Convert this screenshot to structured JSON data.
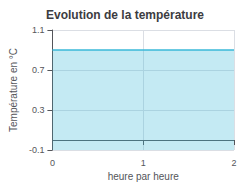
{
  "chart_data": {
    "type": "area",
    "title": "Evolution de la température",
    "xlabel": "heure par heure",
    "ylabel": "Température en °C",
    "x": [
      0,
      2
    ],
    "values": [
      0.9,
      0.9
    ],
    "color": "#3ab8d8",
    "xlim": [
      0,
      2
    ],
    "ylim": [
      -0.1,
      1.1
    ],
    "xticks": [
      0,
      1,
      2
    ],
    "yticks": [
      -0.1,
      0.3,
      0.7,
      1.1
    ],
    "grid": true
  }
}
